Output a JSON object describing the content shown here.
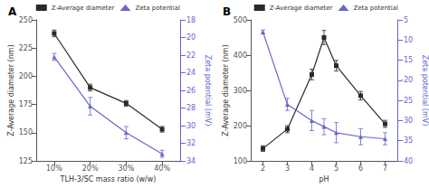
{
  "chart_data": [
    {
      "type": "line",
      "title": "A",
      "categories": [
        "10%",
        "20%",
        "30%",
        "40%"
      ],
      "xlabel": "TLH-3/SC mass ratio (w/w)",
      "ylabel": "Z-Average diameter (nm)",
      "y2label": "Zeta potential (mV)",
      "ylim": [
        125,
        250
      ],
      "yticks": [
        125,
        150,
        175,
        200,
        225,
        250
      ],
      "y2lim": [
        -34,
        -18
      ],
      "y2ticks": [
        -34,
        -32,
        -30,
        -28,
        -26,
        -24,
        -22,
        -20,
        -18
      ],
      "grid": false,
      "legend": "upper right",
      "series": [
        {
          "name": "Z-Average diameter",
          "color": "#2a2a2a",
          "marker": "square",
          "values": [
            238,
            190,
            176,
            153
          ],
          "errors": [
            3,
            3,
            2.5,
            2.5
          ]
        },
        {
          "name": "Zeta potential",
          "color": "#6666cc",
          "marker": "triangle",
          "axis": "y2",
          "values": [
            -22.2,
            -27.8,
            -30.8,
            -33.2
          ],
          "errors": [
            0.4,
            1.0,
            0.7,
            0.4
          ]
        }
      ]
    },
    {
      "type": "line",
      "title": "B",
      "x": [
        2,
        3,
        4,
        4.5,
        5,
        6,
        7
      ],
      "xlim": [
        1.5,
        7.5
      ],
      "xticks": [
        2,
        3,
        4,
        5,
        6,
        7
      ],
      "xlabel": "pH",
      "ylabel": "Z-Average diameter (nm)",
      "y2label": "Zeta potential (mV)",
      "ylim": [
        100,
        500
      ],
      "yticks": [
        100,
        200,
        300,
        400,
        500
      ],
      "y2lim": [
        -40,
        -5
      ],
      "y2ticks": [
        -40,
        -35,
        -30,
        -25,
        -20,
        -15,
        -10,
        -5
      ],
      "grid": false,
      "legend": "upper right",
      "series": [
        {
          "name": "Z-Average diameter",
          "color": "#2a2a2a",
          "marker": "square",
          "values": [
            135,
            190,
            345,
            450,
            370,
            285,
            205
          ],
          "errors": [
            8,
            10,
            15,
            20,
            15,
            12,
            10
          ]
        },
        {
          "name": "Zeta potential",
          "color": "#6666cc",
          "marker": "triangle",
          "axis": "y2",
          "values": [
            -8,
            -26,
            -30,
            -31.5,
            -33,
            -34,
            -34.5
          ],
          "errors": [
            0.5,
            1.5,
            2.5,
            2.0,
            2.5,
            2.0,
            1.5
          ]
        }
      ]
    }
  ]
}
